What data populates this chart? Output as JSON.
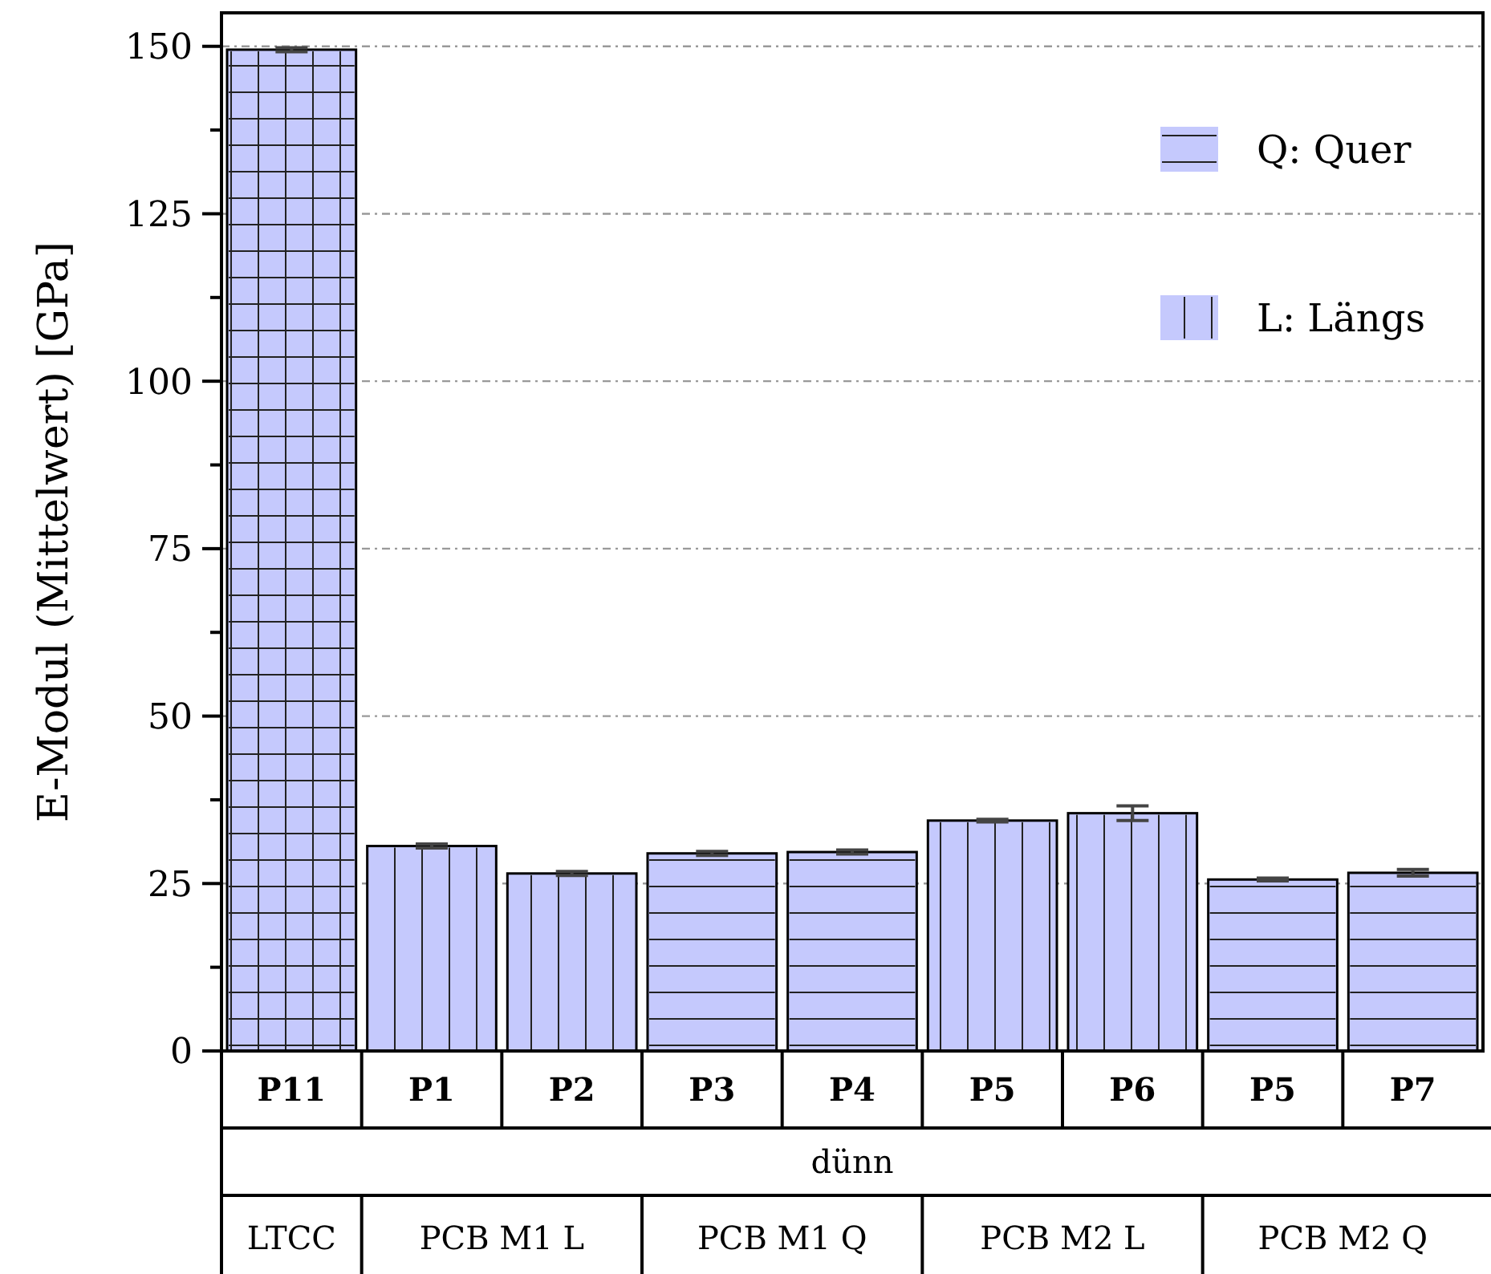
{
  "chart_data": {
    "type": "bar",
    "ylabel": "E-Modul (Mittelwert) [GPa]",
    "categories": [
      "P11",
      "P1",
      "P2",
      "P3",
      "P4",
      "P5",
      "P6",
      "P5",
      "P7"
    ],
    "series": [
      {
        "name": "Q: Quer",
        "color": "#c5c9fd",
        "values": [
          null,
          null,
          null,
          29.5,
          29.7,
          null,
          null,
          25.6,
          26.6
        ],
        "errors": [
          null,
          null,
          null,
          0.3,
          0.3,
          null,
          null,
          0.2,
          0.5
        ]
      },
      {
        "name": "L: Längs",
        "color": "#c5c9fd",
        "values": [
          null,
          30.6,
          26.5,
          null,
          null,
          34.4,
          35.5,
          null,
          null
        ],
        "errors": [
          null,
          0.3,
          0.3,
          null,
          null,
          0.2,
          1.1,
          null,
          null
        ]
      },
      {
        "color": "#c5c9fd",
        "values": [
          149.5,
          null,
          null,
          null,
          null,
          null,
          null,
          null,
          null
        ],
        "errors": [
          0.3,
          null,
          null,
          null,
          null,
          null,
          null,
          null,
          null
        ]
      }
    ],
    "ylim": [
      0,
      155
    ],
    "yticks": [
      0,
      {
        "value": 12.5,
        "label": null
      },
      25,
      {
        "value": 37.5,
        "label": null
      },
      50,
      {
        "value": 62.5,
        "label": null
      },
      75,
      {
        "value": 87.5,
        "label": null
      },
      100,
      {
        "value": 112.5,
        "label": null
      },
      125,
      {
        "value": 137.5,
        "label": null
      },
      150
    ],
    "grid": "y",
    "legend": "top right",
    "annotations": [
      "dünn",
      "LTCC",
      "PCB M1 L",
      "PCB M1 Q",
      "PCB M2 L",
      "PCB M2 Q"
    ]
  }
}
